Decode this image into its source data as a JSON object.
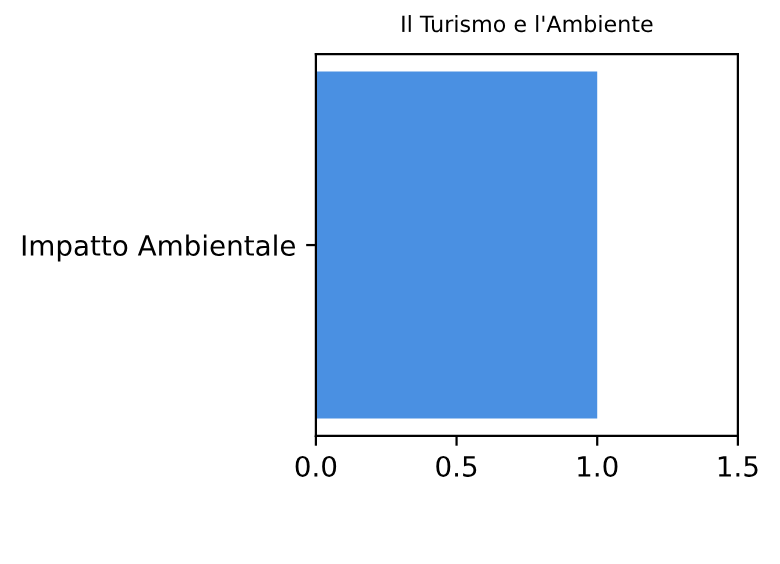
{
  "chart_data": {
    "type": "bar",
    "orientation": "horizontal",
    "title": "Il Turismo e l'Ambiente",
    "categories": [
      "Impatto Ambientale"
    ],
    "values": [
      1.0
    ],
    "color": "#4a90e2",
    "xlim": [
      0,
      1.5
    ],
    "xticks": [
      {
        "value": 0,
        "label": "0.0"
      },
      0.5,
      {
        "value": 1,
        "label": "1.0"
      },
      1.5
    ]
  }
}
